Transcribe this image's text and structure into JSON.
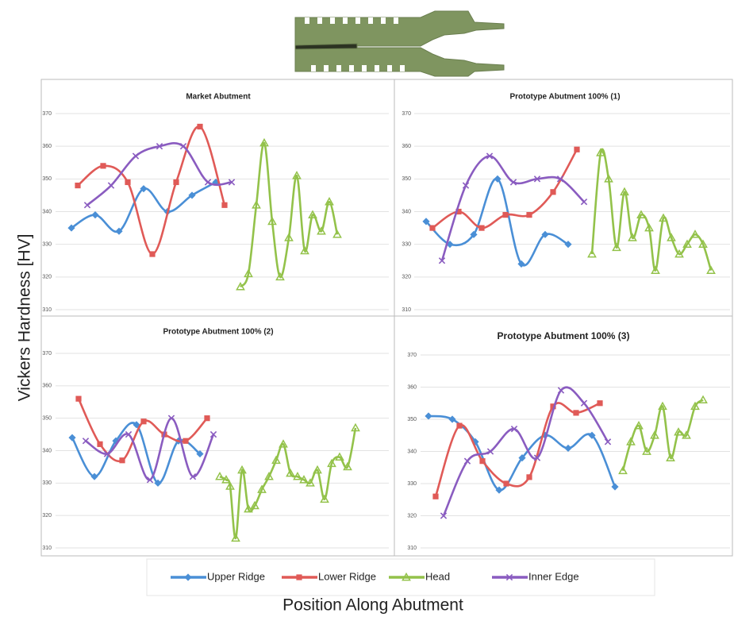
{
  "axis_labels": {
    "y": "Vickers Hardness [HV]",
    "x": "Position Along Abutment"
  },
  "chart_data": [
    {
      "type": "line",
      "title": "Market Abutment",
      "ylim": [
        310,
        370
      ],
      "yticks": [
        310,
        320,
        330,
        340,
        350,
        360,
        370
      ],
      "xlim": [
        0,
        41.5
      ],
      "grid": true,
      "smooth": true,
      "series": [
        {
          "name": "Upper Ridge",
          "color": "#4a8fd6",
          "marker": "diamond",
          "x": [
            1.5,
            4.5,
            7.5,
            10.6,
            13.6,
            16.7,
            19.7
          ],
          "values": [
            335,
            339,
            334,
            347,
            340,
            345,
            349
          ]
        },
        {
          "name": "Lower Ridge",
          "color": "#e05a57",
          "marker": "square",
          "x": [
            2.3,
            5.5,
            8.6,
            11.7,
            14.7,
            17.7,
            20.8
          ],
          "values": [
            348,
            354,
            349,
            327,
            349,
            366,
            342
          ]
        },
        {
          "name": "Head",
          "color": "#93c24a",
          "marker": "triangle",
          "x": [
            22.8,
            23.8,
            24.8,
            25.8,
            26.8,
            27.8,
            28.9,
            29.9,
            30.9,
            31.9,
            33,
            34,
            35
          ],
          "values": [
            317,
            321,
            342,
            361,
            337,
            320,
            332,
            351,
            328,
            339,
            334,
            343,
            333
          ]
        },
        {
          "name": "Inner Edge",
          "color": "#8a5cc0",
          "marker": "x",
          "x": [
            3.5,
            6.5,
            9.6,
            12.6,
            15.6,
            18.7,
            21.7
          ],
          "values": [
            342,
            348,
            357,
            360,
            360,
            349,
            349
          ]
        }
      ]
    },
    {
      "type": "line",
      "title": "Prototype Abutment 100% (1)",
      "ylim": [
        310,
        370
      ],
      "yticks": [
        310,
        320,
        330,
        340,
        350,
        360,
        370
      ],
      "xlim": [
        0,
        41
      ],
      "grid": true,
      "smooth": true,
      "series": [
        {
          "name": "Upper Ridge",
          "color": "#4a8fd6",
          "marker": "diamond",
          "x": [
            2.7,
            5.7,
            8.7,
            11.7,
            14.7,
            17.7,
            20.6
          ],
          "values": [
            337,
            330,
            333,
            350,
            324,
            333,
            330
          ]
        },
        {
          "name": "Lower Ridge",
          "color": "#e05a57",
          "marker": "square",
          "x": [
            3.5,
            6.8,
            9.7,
            12.7,
            15.7,
            18.7,
            21.7
          ],
          "values": [
            335,
            340,
            335,
            339,
            339,
            346,
            359
          ]
        },
        {
          "name": "Head",
          "color": "#93c24a",
          "marker": "triangle",
          "x": [
            23.6,
            24.7,
            25.7,
            26.7,
            27.7,
            28.7,
            29.8,
            30.8,
            31.6,
            32.6,
            33.6,
            34.6,
            35.6,
            36.6,
            37.6,
            38.6
          ],
          "values": [
            327,
            358,
            350,
            329,
            346,
            332,
            339,
            335,
            322,
            338,
            332,
            327,
            330,
            333,
            330,
            322
          ]
        },
        {
          "name": "Inner Edge",
          "color": "#8a5cc0",
          "marker": "x",
          "x": [
            4.7,
            7.7,
            10.7,
            13.7,
            16.7,
            19.6,
            22.6
          ],
          "values": [
            325,
            348,
            357,
            349,
            350,
            350,
            343
          ]
        }
      ]
    },
    {
      "type": "line",
      "title": "Prototype Abutment 100% (2)",
      "ylim": [
        310,
        370
      ],
      "yticks": [
        310,
        320,
        330,
        340,
        350,
        360,
        370
      ],
      "xlim": [
        0,
        41.5
      ],
      "grid": true,
      "smooth": true,
      "series": [
        {
          "name": "Upper Ridge",
          "color": "#4a8fd6",
          "marker": "diamond",
          "x": [
            1.6,
            4.4,
            7.1,
            9.7,
            12.4,
            15,
            17.7
          ],
          "values": [
            344,
            332,
            343,
            348,
            330,
            343,
            339
          ]
        },
        {
          "name": "Lower Ridge",
          "color": "#e05a57",
          "marker": "square",
          "x": [
            2.4,
            5.1,
            7.9,
            10.6,
            13.2,
            15.9,
            18.6
          ],
          "values": [
            356,
            342,
            337,
            349,
            345,
            343,
            350
          ]
        },
        {
          "name": "Head",
          "color": "#93c24a",
          "marker": "triangle",
          "x": [
            20.2,
            21,
            21.5,
            22.2,
            23,
            23.8,
            24.6,
            25.5,
            26.4,
            27.3,
            28.2,
            29.1,
            30,
            30.8,
            31.6,
            32.5,
            33.4,
            34.3,
            35.3,
            36.3,
            37.3
          ],
          "values": [
            332,
            331,
            329,
            313,
            334,
            322,
            323,
            328,
            332,
            337,
            342,
            333,
            332,
            331,
            330,
            334,
            325,
            336,
            338,
            335,
            347
          ]
        },
        {
          "name": "Inner Edge",
          "color": "#8a5cc0",
          "marker": "x",
          "x": [
            3.3,
            6,
            8.7,
            11.4,
            14.1,
            16.8,
            19.4
          ],
          "values": [
            343,
            339,
            345,
            331,
            350,
            332,
            345
          ]
        }
      ]
    },
    {
      "type": "line",
      "title": "Prototype Abutment 100% (3)",
      "ylim": [
        310,
        370
      ],
      "yticks": [
        310,
        320,
        330,
        340,
        350,
        360,
        370
      ],
      "xlim": [
        0,
        40
      ],
      "grid": true,
      "smooth": true,
      "series": [
        {
          "name": "Upper Ridge",
          "color": "#4a8fd6",
          "marker": "diamond",
          "x": [
            2,
            5,
            7.9,
            10.9,
            13.8,
            16.7,
            19.6,
            22.6,
            25.5
          ],
          "values": [
            351,
            350,
            343,
            328,
            338,
            345,
            341,
            345,
            329
          ]
        },
        {
          "name": "Lower Ridge",
          "color": "#e05a57",
          "marker": "square",
          "x": [
            2.9,
            5.9,
            8.8,
            11.8,
            14.7,
            17.7,
            20.6,
            23.6
          ],
          "values": [
            326,
            348,
            337,
            330,
            332,
            354,
            352,
            355
          ]
        },
        {
          "name": "Head",
          "color": "#93c24a",
          "marker": "triangle",
          "x": [
            26.5,
            27.5,
            28.5,
            29.5,
            30.5,
            31.5,
            32.5,
            33.5,
            34.5,
            35.6,
            36.6
          ],
          "values": [
            334,
            343,
            348,
            340,
            345,
            354,
            338,
            346,
            345,
            354,
            356
          ]
        },
        {
          "name": "Inner Edge",
          "color": "#8a5cc0",
          "marker": "x",
          "x": [
            3.9,
            6.9,
            9.8,
            12.8,
            15.7,
            18.7,
            21.6,
            24.6
          ],
          "values": [
            320,
            337,
            340,
            347,
            338,
            359,
            355,
            343
          ]
        }
      ]
    }
  ]
}
